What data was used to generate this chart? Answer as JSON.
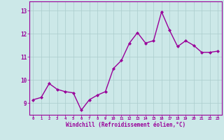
{
  "x": [
    0,
    1,
    2,
    3,
    4,
    5,
    6,
    7,
    8,
    9,
    10,
    11,
    12,
    13,
    14,
    15,
    16,
    17,
    18,
    19,
    20,
    21,
    22,
    23
  ],
  "y": [
    9.15,
    9.25,
    9.85,
    9.6,
    9.5,
    9.45,
    8.7,
    9.15,
    9.35,
    9.5,
    10.5,
    10.85,
    11.6,
    12.05,
    11.6,
    11.7,
    12.95,
    12.15,
    11.45,
    11.7,
    11.5,
    11.2,
    11.2,
    11.25
  ],
  "line_color": "#990099",
  "marker": "D",
  "marker_size": 2.0,
  "bg_color": "#cce8e8",
  "grid_color": "#aacccc",
  "ylabel_ticks": [
    9,
    10,
    11,
    12,
    13
  ],
  "ylim": [
    8.5,
    13.4
  ],
  "xlim": [
    -0.5,
    23.5
  ],
  "xlabel": "Windchill (Refroidissement éolien,°C)",
  "tick_color": "#990099",
  "spine_color": "#990099",
  "line_width": 1.0
}
